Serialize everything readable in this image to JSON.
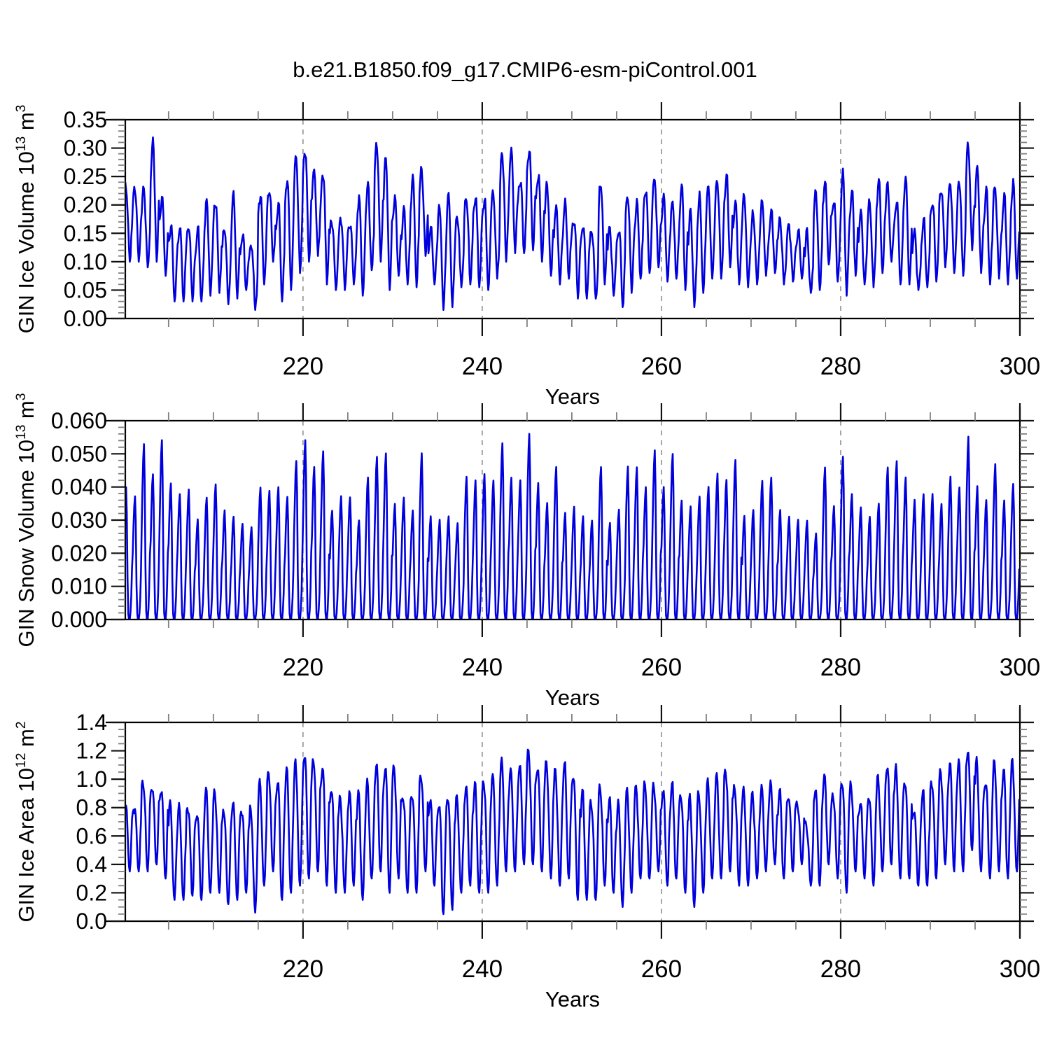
{
  "title": "b.e21.B1850.f09_g17.CMIP6-esm-piControl.001",
  "line_color": "#0000dd",
  "grid_color": "#909090",
  "chart_data": [
    {
      "type": "line",
      "name": "gin-ice-volume",
      "xlabel": "Years",
      "ylabel_parts": [
        {
          "t": "GIN Ice Volume 10"
        },
        {
          "sup": "13"
        },
        {
          "t": " m"
        },
        {
          "sup": "3"
        }
      ],
      "xlim": [
        200.17,
        300.0
      ],
      "xticks": [
        220,
        240,
        260,
        280,
        300
      ],
      "xminor_step": 5,
      "ylim": [
        0,
        0.35
      ],
      "yticks": [
        0,
        0.05,
        0.1,
        0.15,
        0.2,
        0.25,
        0.3,
        0.35
      ],
      "ytick_decimals": 2,
      "yminor_step": 0.01,
      "grid_on_major_x": true,
      "start_year": 200,
      "seasonal_weights": [
        0.72,
        0.88,
        0.97,
        1.0,
        0.93,
        0.72,
        0.42,
        0.15,
        0.0,
        0.1,
        0.3,
        0.52
      ],
      "annual_max": [
        0.23,
        0.23,
        0.225,
        0.31,
        0.21,
        0.165,
        0.16,
        0.165,
        0.155,
        0.2,
        0.21,
        0.16,
        0.21,
        0.145,
        0.135,
        0.22,
        0.23,
        0.2,
        0.25,
        0.28,
        0.3,
        0.255,
        0.26,
        0.175,
        0.18,
        0.17,
        0.21,
        0.23,
        0.305,
        0.28,
        0.21,
        0.19,
        0.24,
        0.26,
        0.155,
        0.19,
        0.21,
        0.175,
        0.215,
        0.22,
        0.215,
        0.22,
        0.29,
        0.29,
        0.245,
        0.3,
        0.25,
        0.235,
        0.19,
        0.2,
        0.18,
        0.17,
        0.155,
        0.24,
        0.155,
        0.16,
        0.22,
        0.2,
        0.23,
        0.245,
        0.21,
        0.2,
        0.23,
        0.18,
        0.21,
        0.225,
        0.245,
        0.25,
        0.2,
        0.21,
        0.18,
        0.2,
        0.185,
        0.17,
        0.16,
        0.15,
        0.145,
        0.22,
        0.24,
        0.21,
        0.25,
        0.22,
        0.18,
        0.2,
        0.24,
        0.23,
        0.21,
        0.24,
        0.15,
        0.17,
        0.21,
        0.23,
        0.235,
        0.24,
        0.3,
        0.26,
        0.22,
        0.23,
        0.21,
        0.235,
        0.22
      ],
      "annual_min": [
        0.1,
        0.1,
        0.09,
        0.1,
        0.075,
        0.03,
        0.03,
        0.03,
        0.03,
        0.04,
        0.045,
        0.025,
        0.035,
        0.05,
        0.015,
        0.06,
        0.1,
        0.03,
        0.05,
        0.08,
        0.1,
        0.11,
        0.06,
        0.05,
        0.05,
        0.06,
        0.04,
        0.085,
        0.1,
        0.05,
        0.075,
        0.06,
        0.055,
        0.11,
        0.06,
        0.015,
        0.02,
        0.055,
        0.06,
        0.055,
        0.05,
        0.07,
        0.1,
        0.115,
        0.115,
        0.12,
        0.1,
        0.075,
        0.06,
        0.07,
        0.035,
        0.035,
        0.035,
        0.06,
        0.04,
        0.02,
        0.045,
        0.07,
        0.08,
        0.09,
        0.065,
        0.07,
        0.05,
        0.02,
        0.045,
        0.07,
        0.07,
        0.09,
        0.06,
        0.055,
        0.06,
        0.075,
        0.08,
        0.06,
        0.065,
        0.07,
        0.045,
        0.05,
        0.095,
        0.065,
        0.04,
        0.075,
        0.06,
        0.055,
        0.08,
        0.1,
        0.06,
        0.06,
        0.05,
        0.055,
        0.065,
        0.09,
        0.08,
        0.075,
        0.12,
        0.08,
        0.06,
        0.07,
        0.06,
        0.07,
        0.08
      ],
      "noise_amp": 0.013,
      "second_harmonic": 0.012,
      "seed": 7
    },
    {
      "type": "line",
      "name": "gin-snow-volume",
      "xlabel": "Years",
      "ylabel_parts": [
        {
          "t": "GIN Snow Volume 10"
        },
        {
          "sup": "13"
        },
        {
          "t": " m"
        },
        {
          "sup": "3"
        }
      ],
      "xlim": [
        200.17,
        300.0
      ],
      "xticks": [
        220,
        240,
        260,
        280,
        300
      ],
      "xminor_step": 5,
      "ylim": [
        0,
        0.06
      ],
      "yticks": [
        0,
        0.01,
        0.02,
        0.03,
        0.04,
        0.05,
        0.06
      ],
      "ytick_decimals": 3,
      "yminor_step": 0.002,
      "grid_on_major_x": true,
      "start_year": 200,
      "seasonal_weights": [
        0.55,
        0.75,
        0.92,
        1.0,
        0.8,
        0.3,
        0.04,
        0.0,
        0.0,
        0.06,
        0.18,
        0.38
      ],
      "annual_max": [
        0.04,
        0.037,
        0.053,
        0.044,
        0.054,
        0.041,
        0.038,
        0.039,
        0.03,
        0.037,
        0.041,
        0.033,
        0.031,
        0.029,
        0.028,
        0.04,
        0.039,
        0.04,
        0.037,
        0.048,
        0.054,
        0.046,
        0.051,
        0.033,
        0.037,
        0.037,
        0.03,
        0.043,
        0.049,
        0.05,
        0.035,
        0.037,
        0.033,
        0.05,
        0.031,
        0.03,
        0.031,
        0.029,
        0.043,
        0.042,
        0.044,
        0.042,
        0.053,
        0.043,
        0.042,
        0.056,
        0.041,
        0.035,
        0.046,
        0.032,
        0.034,
        0.031,
        0.03,
        0.046,
        0.029,
        0.033,
        0.046,
        0.046,
        0.04,
        0.051,
        0.04,
        0.05,
        0.036,
        0.034,
        0.037,
        0.04,
        0.044,
        0.042,
        0.048,
        0.031,
        0.033,
        0.042,
        0.043,
        0.033,
        0.031,
        0.03,
        0.03,
        0.026,
        0.046,
        0.034,
        0.049,
        0.038,
        0.034,
        0.031,
        0.035,
        0.046,
        0.048,
        0.043,
        0.036,
        0.038,
        0.038,
        0.035,
        0.043,
        0.04,
        0.055,
        0.04,
        0.036,
        0.047,
        0.036,
        0.041,
        0.041
      ],
      "annual_min": 0,
      "noise_amp": 0.0008,
      "second_harmonic": 0,
      "seed": 13
    },
    {
      "type": "line",
      "name": "gin-ice-area",
      "xlabel": "Years",
      "ylabel_parts": [
        {
          "t": "GIN Ice Area 10"
        },
        {
          "sup": "12"
        },
        {
          "t": " m"
        },
        {
          "sup": "2"
        }
      ],
      "xlim": [
        200.17,
        300.0
      ],
      "xticks": [
        220,
        240,
        260,
        280,
        300
      ],
      "xminor_step": 5,
      "ylim": [
        0,
        1.4
      ],
      "yticks": [
        0,
        0.2,
        0.4,
        0.6,
        0.8,
        1.0,
        1.2,
        1.4
      ],
      "ytick_decimals": 1,
      "yminor_step": 0.05,
      "grid_on_major_x": true,
      "start_year": 200,
      "seasonal_weights": [
        0.85,
        0.97,
        1.0,
        0.95,
        0.8,
        0.55,
        0.25,
        0.05,
        0.0,
        0.12,
        0.42,
        0.68
      ],
      "annual_max": [
        0.85,
        0.82,
        1.0,
        0.97,
        0.95,
        0.8,
        0.78,
        0.82,
        0.78,
        0.9,
        0.91,
        0.8,
        0.85,
        0.8,
        0.78,
        0.95,
        1.05,
        1.0,
        1.05,
        1.1,
        1.2,
        1.15,
        1.1,
        0.95,
        0.85,
        0.9,
        0.88,
        0.95,
        1.1,
        1.1,
        1.08,
        0.9,
        0.92,
        1.05,
        0.85,
        0.85,
        0.9,
        0.85,
        0.95,
        0.95,
        1.0,
        1.0,
        1.1,
        1.05,
        1.1,
        1.2,
        1.1,
        1.1,
        1.05,
        1.1,
        1.05,
        0.9,
        0.85,
        0.95,
        0.85,
        0.8,
        0.9,
        0.92,
        0.95,
        0.95,
        0.92,
        0.95,
        0.9,
        0.85,
        0.9,
        0.95,
        1.0,
        1.07,
        0.95,
        0.9,
        0.88,
        0.92,
        0.95,
        0.9,
        0.9,
        0.85,
        0.7,
        0.95,
        1.0,
        0.9,
        1.0,
        0.95,
        0.85,
        0.9,
        1.0,
        1.1,
        1.05,
        1.0,
        0.8,
        0.9,
        1.0,
        1.05,
        1.1,
        1.1,
        1.21,
        1.1,
        1.0,
        1.1,
        1.05,
        1.1,
        1.05
      ],
      "annual_min": [
        0.35,
        0.35,
        0.35,
        0.4,
        0.3,
        0.15,
        0.15,
        0.18,
        0.15,
        0.2,
        0.2,
        0.12,
        0.15,
        0.2,
        0.06,
        0.25,
        0.35,
        0.15,
        0.2,
        0.25,
        0.3,
        0.35,
        0.25,
        0.2,
        0.2,
        0.25,
        0.15,
        0.3,
        0.35,
        0.2,
        0.3,
        0.2,
        0.2,
        0.35,
        0.25,
        0.05,
        0.08,
        0.2,
        0.25,
        0.2,
        0.2,
        0.25,
        0.35,
        0.35,
        0.4,
        0.4,
        0.35,
        0.3,
        0.25,
        0.3,
        0.15,
        0.15,
        0.15,
        0.25,
        0.2,
        0.1,
        0.2,
        0.3,
        0.3,
        0.35,
        0.25,
        0.3,
        0.2,
        0.1,
        0.2,
        0.3,
        0.3,
        0.35,
        0.25,
        0.25,
        0.3,
        0.35,
        0.4,
        0.3,
        0.35,
        0.4,
        0.25,
        0.25,
        0.4,
        0.3,
        0.2,
        0.35,
        0.3,
        0.25,
        0.35,
        0.4,
        0.3,
        0.3,
        0.25,
        0.25,
        0.3,
        0.4,
        0.35,
        0.35,
        0.5,
        0.35,
        0.3,
        0.35,
        0.3,
        0.35,
        0.35
      ],
      "noise_amp": 0.042,
      "second_harmonic": 0.05,
      "seed": 21
    }
  ]
}
